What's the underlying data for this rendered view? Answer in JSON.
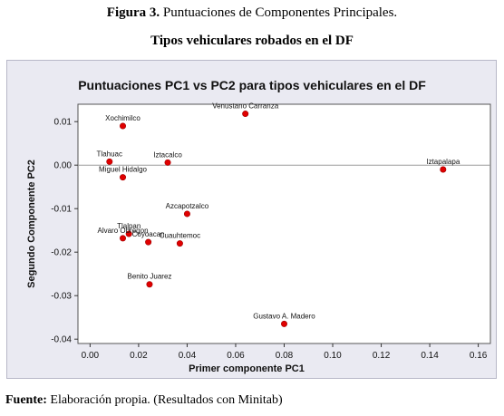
{
  "figure": {
    "label": "Figura 3.",
    "caption": "Puntuaciones de Componentes Principales.",
    "subtitle": "Tipos vehiculares robados en el DF"
  },
  "footer": {
    "label": "Fuente:",
    "text": "Elaboración propia. (Resultados con Minitab)"
  },
  "colors": {
    "panel": "#eaeaf2",
    "plot": "#ffffff",
    "point": "#e00000",
    "refline": "#9a9a9a"
  },
  "chart_data": {
    "type": "scatter",
    "title": "Puntuaciones PC1 vs PC2 para tipos vehiculares en el DF",
    "xlabel": "Primer componente PC1",
    "ylabel": "Segundo Componente PC2",
    "xlim": [
      -0.005,
      0.165
    ],
    "ylim": [
      -0.041,
      0.014
    ],
    "xticks": [
      "0.00",
      "0.02",
      "0.04",
      "0.06",
      "0.08",
      "0.10",
      "0.12",
      "0.14",
      "0.16"
    ],
    "xtick_values": [
      0,
      0.02,
      0.04,
      0.06,
      0.08,
      0.1,
      0.12,
      0.14,
      0.16
    ],
    "yticks": [
      "0.01",
      "0.00",
      "-0.01",
      "-0.02",
      "-0.03",
      "-0.04"
    ],
    "ytick_values": [
      0.01,
      0,
      -0.01,
      -0.02,
      -0.03,
      -0.04
    ],
    "reference_line_y": 0,
    "grid": false,
    "points": [
      {
        "label": "Venustano Carranza",
        "x": 0.064,
        "y": 0.0118
      },
      {
        "label": "Xochimilco",
        "x": 0.0135,
        "y": 0.009
      },
      {
        "label": "Tlahuac",
        "x": 0.008,
        "y": 0.0008
      },
      {
        "label": "Iztacalco",
        "x": 0.032,
        "y": 0.0006
      },
      {
        "label": "Miguel Hidalgo",
        "x": 0.0135,
        "y": -0.0028
      },
      {
        "label": "Iztapalapa",
        "x": 0.1455,
        "y": -0.001
      },
      {
        "label": "Azcapotzalco",
        "x": 0.04,
        "y": -0.0112
      },
      {
        "label": "Tlalpan",
        "x": 0.016,
        "y": -0.0158
      },
      {
        "label": "Alvaro Obregon",
        "x": 0.0135,
        "y": -0.0168
      },
      {
        "label": "Coyoacan",
        "x": 0.024,
        "y": -0.0177
      },
      {
        "label": "Cuauhtemoc",
        "x": 0.037,
        "y": -0.018
      },
      {
        "label": "Benito Juarez",
        "x": 0.0245,
        "y": -0.0274
      },
      {
        "label": "Gustavo A. Madero",
        "x": 0.08,
        "y": -0.0365
      }
    ]
  }
}
